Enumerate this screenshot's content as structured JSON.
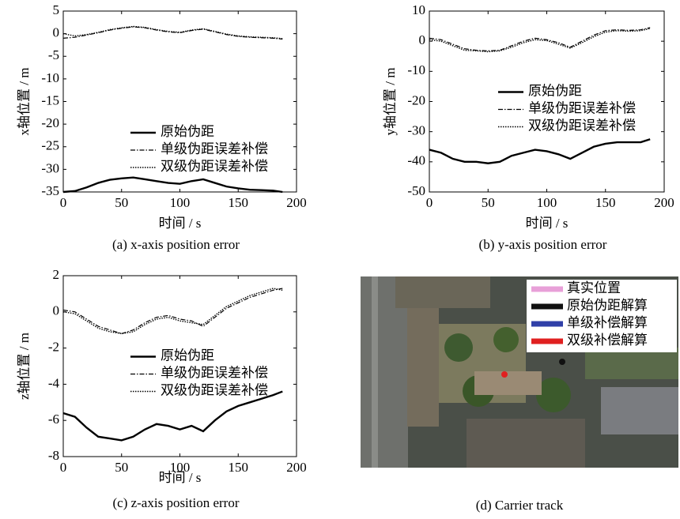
{
  "chart_data": [
    {
      "type": "line",
      "caption": "(a) x-axis position error",
      "xlabel": "时间 / s",
      "ylabel": "x轴位置 / m",
      "x": [
        0,
        10,
        20,
        30,
        40,
        50,
        60,
        70,
        80,
        90,
        100,
        110,
        120,
        130,
        140,
        150,
        160,
        170,
        180,
        188
      ],
      "xlim": [
        0,
        200
      ],
      "xticks": [
        0,
        50,
        100,
        150,
        200
      ],
      "ylim": [
        -35,
        5
      ],
      "yticks": [
        -35,
        -30,
        -25,
        -20,
        -15,
        -10,
        -5,
        0,
        5
      ],
      "grid": false,
      "legend": "lower right",
      "series": [
        {
          "name": "原始伪距",
          "color": "#000000",
          "style": "solid",
          "values": [
            -35,
            -34.8,
            -34,
            -33,
            -32.3,
            -32,
            -31.8,
            -32.2,
            -32.6,
            -33,
            -33.2,
            -32.6,
            -32.2,
            -33,
            -33.8,
            -34.2,
            -34.5,
            -34.6,
            -34.7,
            -35
          ]
        },
        {
          "name": "单级伪距误差补偿",
          "color": "#000000",
          "style": "dashdot",
          "values": [
            -1,
            -0.8,
            -0.3,
            0.2,
            0.8,
            1.2,
            1.5,
            1.3,
            0.8,
            0.4,
            0.2,
            0.7,
            1,
            0.4,
            -0.2,
            -0.6,
            -0.8,
            -0.9,
            -1,
            -1.2
          ]
        },
        {
          "name": "双级伪距误差补偿",
          "color": "#000000",
          "style": "dotted",
          "values": [
            0,
            -0.5,
            -0.2,
            0.3,
            0.9,
            1.3,
            1.6,
            1.4,
            0.9,
            0.5,
            0.3,
            0.8,
            1.1,
            0.5,
            -0.1,
            -0.5,
            -0.7,
            -0.8,
            -0.9,
            -1.1
          ]
        }
      ]
    },
    {
      "type": "line",
      "caption": "(b) y-axis position error",
      "xlabel": "时间 / s",
      "ylabel": "y轴位置 / m",
      "x": [
        0,
        10,
        20,
        30,
        40,
        50,
        60,
        70,
        80,
        90,
        100,
        110,
        120,
        130,
        140,
        150,
        160,
        170,
        180,
        188
      ],
      "xlim": [
        0,
        200
      ],
      "xticks": [
        0,
        50,
        100,
        150,
        200
      ],
      "ylim": [
        -50,
        10
      ],
      "yticks": [
        -50,
        -40,
        -30,
        -20,
        -10,
        0,
        10
      ],
      "grid": false,
      "legend": "center right",
      "series": [
        {
          "name": "原始伪距",
          "color": "#000000",
          "style": "solid",
          "values": [
            -36,
            -37,
            -39,
            -40,
            -40,
            -40.5,
            -40,
            -38,
            -37,
            -36,
            -36.5,
            -37.5,
            -39,
            -37,
            -35,
            -34,
            -33.5,
            -33.5,
            -33.5,
            -32.5
          ]
        },
        {
          "name": "单级伪距误差补偿",
          "color": "#000000",
          "style": "dashdot",
          "values": [
            1,
            0.5,
            -1,
            -2.5,
            -3,
            -3.2,
            -3,
            -1.5,
            0,
            1,
            0.5,
            -0.5,
            -2,
            0,
            2,
            3.5,
            3.8,
            3.6,
            3.8,
            4.5
          ]
        },
        {
          "name": "双级伪距误差补偿",
          "color": "#000000",
          "style": "dotted",
          "values": [
            0.5,
            0,
            -1.5,
            -3,
            -3.2,
            -3.5,
            -3.2,
            -2,
            -0.5,
            0.5,
            0.2,
            -1,
            -2.3,
            -0.5,
            1.5,
            3,
            3.5,
            3.3,
            3.5,
            4.2
          ]
        }
      ]
    },
    {
      "type": "line",
      "caption": "(c) z-axis position error",
      "xlabel": "时间 / s",
      "ylabel": "z轴位置 / m",
      "x": [
        0,
        10,
        20,
        30,
        40,
        50,
        60,
        70,
        80,
        90,
        100,
        110,
        120,
        130,
        140,
        150,
        160,
        170,
        180,
        188
      ],
      "xlim": [
        0,
        200
      ],
      "xticks": [
        0,
        50,
        100,
        150,
        200
      ],
      "ylim": [
        -8,
        2
      ],
      "yticks": [
        -8,
        -6,
        -4,
        -2,
        0,
        2
      ],
      "grid": false,
      "legend": "center right",
      "series": [
        {
          "name": "原始伪距",
          "color": "#000000",
          "style": "solid",
          "values": [
            -5.6,
            -5.8,
            -6.4,
            -6.9,
            -7,
            -7.1,
            -6.9,
            -6.5,
            -6.2,
            -6.3,
            -6.5,
            -6.3,
            -6.6,
            -6,
            -5.5,
            -5.2,
            -5,
            -4.8,
            -4.6,
            -4.4
          ]
        },
        {
          "name": "单级伪距误差补偿",
          "color": "#000000",
          "style": "dashdot",
          "values": [
            0.1,
            0,
            -0.4,
            -0.8,
            -1,
            -1.2,
            -1,
            -0.6,
            -0.3,
            -0.2,
            -0.4,
            -0.5,
            -0.8,
            -0.3,
            0.2,
            0.5,
            0.8,
            1,
            1.2,
            1.3
          ]
        },
        {
          "name": "双级伪距误差补偿",
          "color": "#000000",
          "style": "dotted",
          "values": [
            0,
            -0.1,
            -0.5,
            -0.9,
            -1.1,
            -1.2,
            -1.1,
            -0.7,
            -0.4,
            -0.3,
            -0.5,
            -0.6,
            -0.7,
            -0.2,
            0.3,
            0.6,
            0.9,
            1.1,
            1.3,
            1.2
          ]
        }
      ]
    }
  ],
  "map_panel": {
    "caption": "(d) Carrier track",
    "legend": [
      {
        "label": "真实位置",
        "color": "#e8a0d8"
      },
      {
        "label": "原始伪距解算",
        "color": "#111111"
      },
      {
        "label": "单级补偿解算",
        "color": "#3040a8"
      },
      {
        "label": "双级补偿解算",
        "color": "#e02020"
      }
    ]
  }
}
